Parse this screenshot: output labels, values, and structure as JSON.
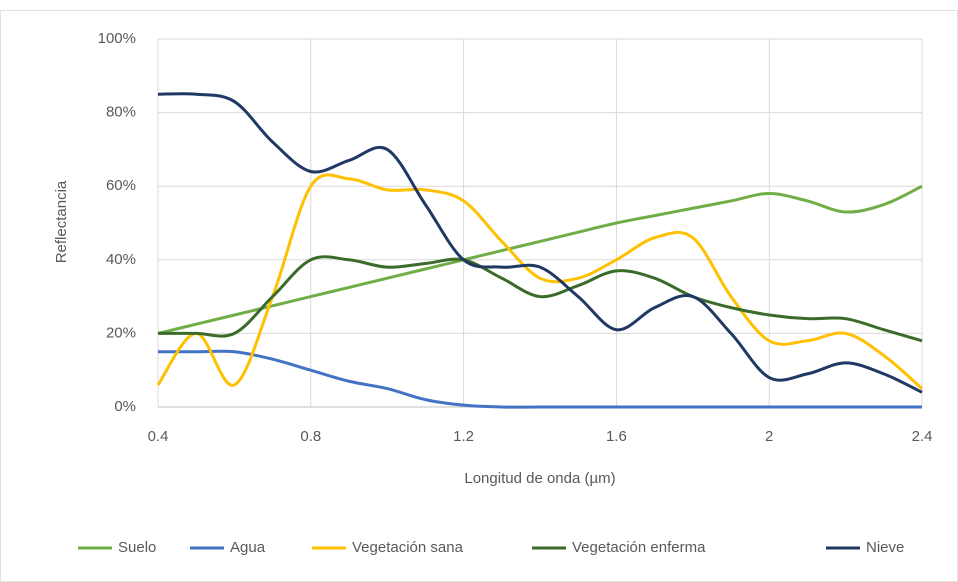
{
  "chart_data": {
    "type": "line",
    "smooth": true,
    "x_label": "Longitud de onda (µm)",
    "y_label": "Reflectancia",
    "x": [
      0.4,
      0.5,
      0.6,
      0.7,
      0.8,
      0.9,
      1.0,
      1.1,
      1.2,
      1.3,
      1.4,
      1.5,
      1.6,
      1.7,
      1.8,
      1.9,
      2.0,
      2.1,
      2.2,
      2.3,
      2.4
    ],
    "xlim": [
      0.4,
      2.4
    ],
    "xticks": [
      0.4,
      0.8,
      1.2,
      1.6,
      2,
      2.4
    ],
    "ylim": [
      0,
      100
    ],
    "yticks": [
      {
        "value": 0,
        "label": "0%"
      },
      {
        "value": 20,
        "label": "20%"
      },
      {
        "value": 40,
        "label": "40%"
      },
      {
        "value": 60,
        "label": "60%"
      },
      {
        "value": 80,
        "label": "80%"
      },
      {
        "value": 100,
        "label": "100%"
      }
    ],
    "grid": true,
    "legend": "bottom",
    "series": [
      {
        "name": "Suelo",
        "color": "#70ad47",
        "values": [
          20,
          22.5,
          25,
          27.5,
          30,
          32.5,
          35,
          37.5,
          40,
          42.5,
          45,
          47.5,
          50,
          52,
          54,
          56,
          58,
          56,
          53,
          55,
          60
        ]
      },
      {
        "name": "Agua",
        "color": "#4472c4",
        "values": [
          15,
          15,
          15,
          13,
          10,
          7,
          5,
          2,
          0.5,
          0,
          0,
          0,
          0,
          0,
          0,
          0,
          0,
          0,
          0,
          0,
          0
        ]
      },
      {
        "name": "Vegetación sana",
        "color": "#ffc000",
        "values": [
          6,
          20,
          6,
          30,
          60,
          62,
          59,
          59,
          56,
          45,
          35,
          35,
          40,
          46,
          46,
          30,
          18,
          18,
          20,
          14,
          5
        ]
      },
      {
        "name": "Vegetación enferma",
        "color": "#3b6b2a",
        "values": [
          20,
          20,
          20,
          30,
          40,
          40,
          38,
          39,
          40,
          35,
          30,
          33,
          37,
          35,
          30,
          27,
          25,
          24,
          24,
          21,
          18
        ]
      },
      {
        "name": "Nieve",
        "color": "#203864",
        "values": [
          85,
          85,
          83,
          72,
          64,
          67,
          70,
          55,
          40,
          38,
          38,
          30,
          21,
          27,
          30,
          20,
          8,
          9,
          12,
          9,
          4
        ]
      }
    ]
  }
}
